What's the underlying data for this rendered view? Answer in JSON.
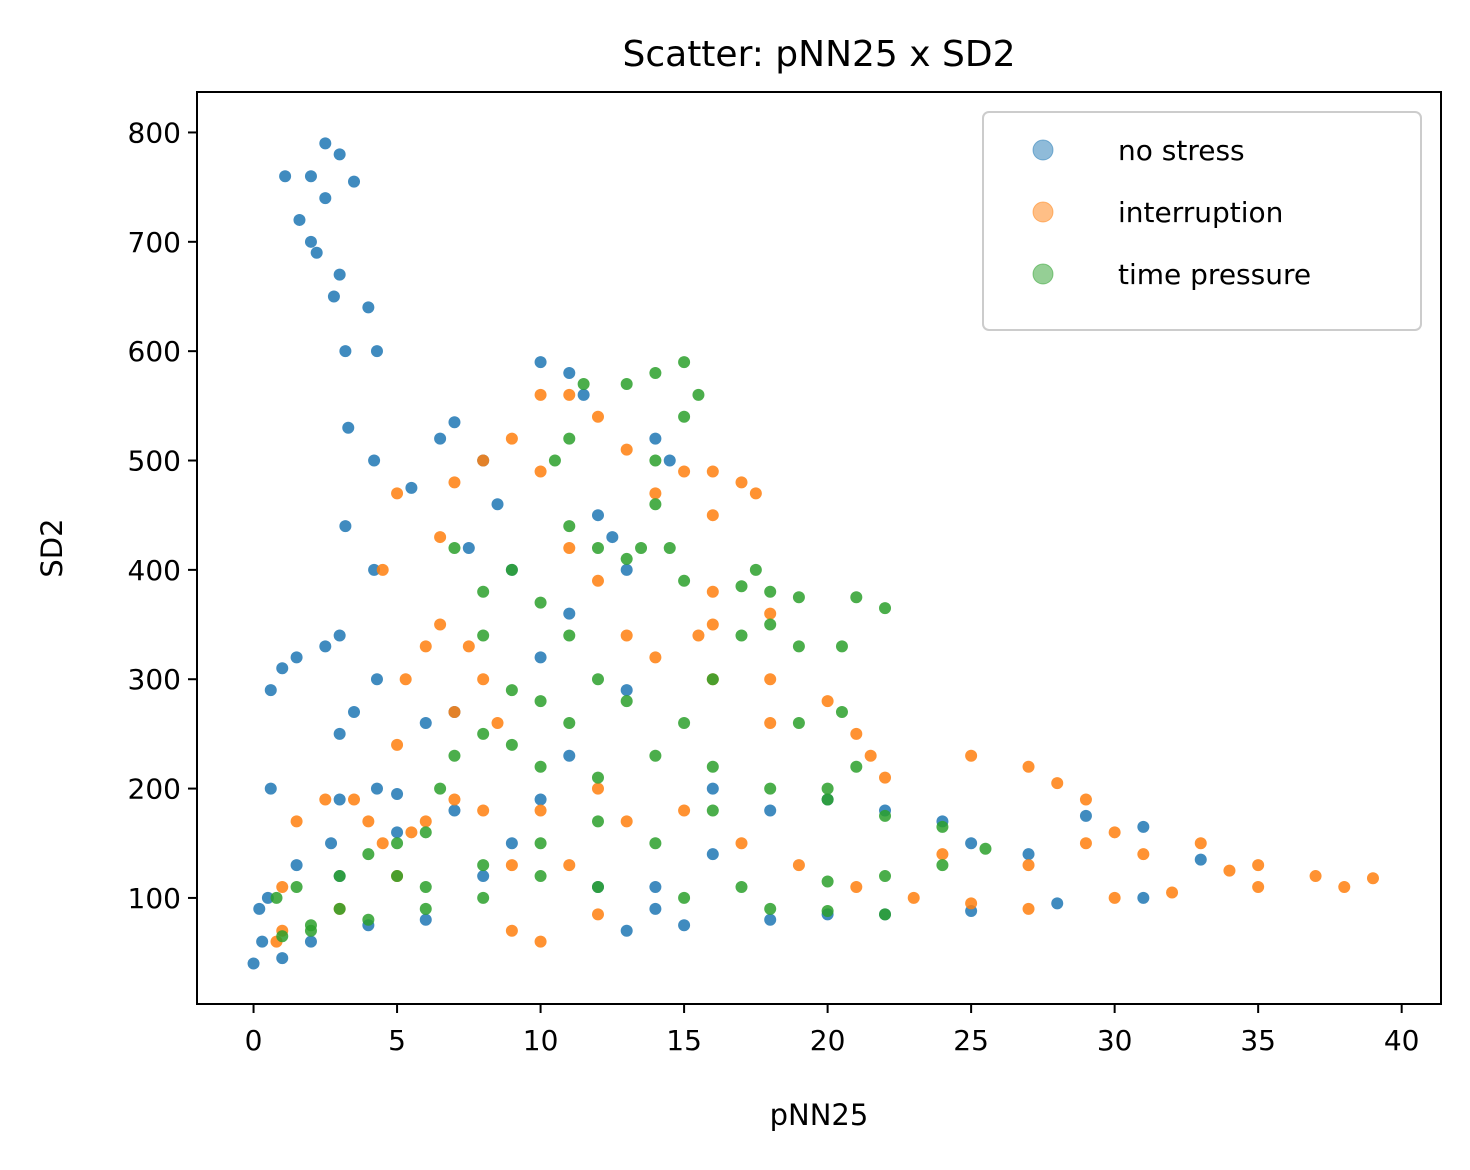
{
  "chart_data": {
    "type": "scatter",
    "title": "Scatter: pNN25 x SD2",
    "x_label": "pNN25",
    "y_label": "SD2",
    "xlim": [
      -1.97,
      41.37
    ],
    "ylim": [
      3,
      837
    ],
    "xticks": [
      0,
      5,
      10,
      15,
      20,
      25,
      30,
      35,
      40
    ],
    "yticks": [
      100,
      200,
      300,
      400,
      500,
      600,
      700,
      800
    ],
    "grid": false,
    "legend": "upper right",
    "series": [
      {
        "name": "no stress",
        "color": "#1f77b4",
        "x": [
          0,
          0.3,
          0.2,
          0.5,
          0.6,
          0.6,
          1,
          1.5,
          2.5,
          3,
          3.2,
          3.3,
          3.2,
          2.8,
          2.2,
          1.6,
          1.1,
          2,
          2.5,
          3,
          3.5,
          2.5,
          2,
          3,
          4,
          4.3,
          4.2,
          4.2,
          4.3,
          4.3,
          3.5,
          3,
          2.7,
          3,
          5,
          6,
          7,
          5.5,
          6.5,
          7,
          8,
          8.5,
          7.5,
          9,
          10,
          11,
          11.5,
          12,
          12.5,
          13,
          14,
          14.5,
          13,
          11,
          10,
          9,
          8,
          6,
          4,
          2,
          1,
          12,
          14,
          16,
          18,
          20,
          22,
          24,
          25,
          27,
          29,
          31,
          33,
          31,
          28,
          25,
          22,
          20,
          18,
          15,
          13,
          14,
          16,
          11,
          10,
          7,
          5,
          3,
          1.5
        ],
        "values": [
          40,
          60,
          90,
          100,
          200,
          290,
          310,
          320,
          330,
          340,
          440,
          530,
          600,
          650,
          690,
          720,
          760,
          760,
          790,
          780,
          755,
          740,
          700,
          670,
          640,
          600,
          500,
          400,
          300,
          200,
          270,
          250,
          150,
          190,
          195,
          260,
          270,
          475,
          520,
          535,
          500,
          460,
          420,
          400,
          590,
          580,
          560,
          450,
          430,
          400,
          520,
          500,
          290,
          230,
          190,
          150,
          120,
          80,
          75,
          60,
          45,
          110,
          110,
          140,
          180,
          190,
          180,
          170,
          150,
          140,
          175,
          165,
          135,
          100,
          95,
          88,
          85,
          85,
          80,
          75,
          70,
          90,
          200,
          360,
          320,
          180,
          160,
          120,
          130
        ]
      },
      {
        "name": "interruption",
        "color": "#ff7f0e",
        "x": [
          0.8,
          1,
          1.5,
          2.5,
          3.5,
          4,
          4.5,
          5,
          5.3,
          6,
          6.5,
          7.5,
          8,
          8.5,
          7,
          7,
          5.5,
          4.5,
          5,
          6.5,
          7,
          8,
          9,
          10,
          10,
          11,
          12,
          13,
          14,
          15,
          16,
          17,
          17.5,
          16,
          16,
          15.5,
          16,
          18,
          20,
          21,
          21.5,
          22,
          25,
          27,
          28,
          29,
          30,
          33,
          35,
          37,
          39,
          38,
          35,
          32,
          30,
          27,
          25,
          23,
          21,
          19,
          17,
          15,
          12,
          10,
          8,
          6,
          5,
          3,
          1,
          9,
          10,
          12,
          11,
          9,
          12,
          13,
          14,
          16,
          18,
          18,
          24,
          27,
          29,
          31,
          34,
          13,
          11
        ],
        "values": [
          60,
          110,
          170,
          190,
          190,
          170,
          150,
          240,
          300,
          330,
          350,
          330,
          300,
          260,
          270,
          190,
          160,
          400,
          470,
          430,
          480,
          500,
          520,
          490,
          560,
          560,
          540,
          510,
          470,
          490,
          490,
          480,
          470,
          450,
          380,
          340,
          300,
          300,
          280,
          250,
          230,
          210,
          230,
          220,
          205,
          190,
          160,
          150,
          130,
          120,
          118,
          110,
          110,
          105,
          100,
          90,
          95,
          100,
          110,
          130,
          150,
          180,
          200,
          180,
          180,
          170,
          120,
          90,
          70,
          70,
          60,
          85,
          130,
          130,
          390,
          340,
          320,
          350,
          360,
          260,
          140,
          130,
          150,
          140,
          125,
          170,
          420
        ]
      },
      {
        "name": "time pressure",
        "color": "#2ca02c",
        "x": [
          0.8,
          1.5,
          2,
          3,
          3,
          4,
          5,
          5,
          6,
          6.5,
          7,
          8,
          9,
          10,
          11,
          12,
          13,
          13.5,
          14,
          13,
          12,
          11,
          10.5,
          11,
          11.5,
          13,
          14,
          15,
          15.5,
          15,
          14,
          14.5,
          15,
          17,
          17.5,
          18,
          19,
          21,
          22,
          20.5,
          20.5,
          21,
          20,
          19,
          19,
          18,
          17,
          16,
          15,
          16,
          18,
          20,
          22,
          24,
          25.5,
          24,
          22,
          20,
          17,
          18,
          20,
          22,
          15,
          12,
          10,
          8,
          6,
          4,
          2,
          1,
          7,
          8,
          9,
          10,
          11,
          8,
          9,
          10,
          12,
          14,
          16,
          14,
          12,
          10,
          8,
          6
        ],
        "values": [
          100,
          110,
          70,
          90,
          120,
          140,
          120,
          150,
          160,
          200,
          230,
          250,
          240,
          280,
          260,
          300,
          280,
          420,
          460,
          410,
          420,
          440,
          500,
          520,
          570,
          570,
          580,
          590,
          560,
          540,
          500,
          420,
          390,
          385,
          400,
          380,
          375,
          375,
          365,
          330,
          270,
          220,
          200,
          260,
          330,
          350,
          340,
          300,
          260,
          220,
          200,
          190,
          175,
          165,
          145,
          130,
          120,
          115,
          110,
          90,
          88,
          85,
          100,
          110,
          120,
          100,
          90,
          80,
          75,
          65,
          420,
          380,
          400,
          370,
          340,
          340,
          290,
          220,
          210,
          230,
          180,
          150,
          170,
          150,
          130,
          110
        ]
      }
    ]
  }
}
